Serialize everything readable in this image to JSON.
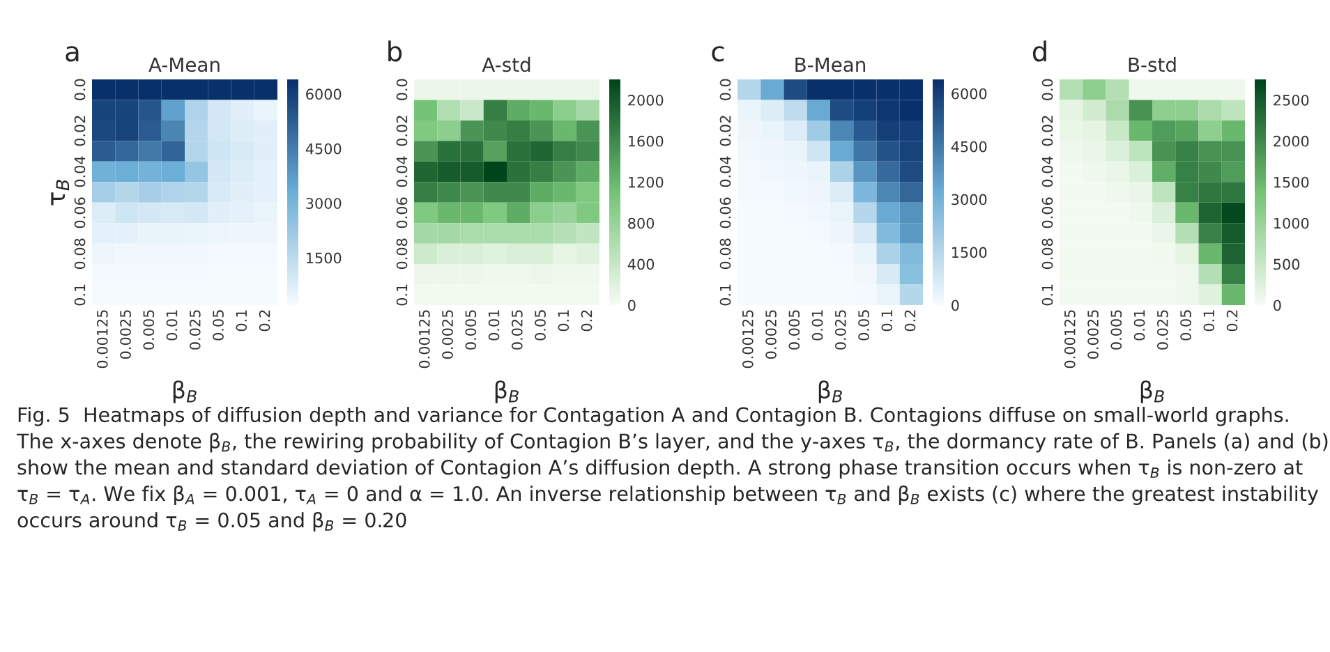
{
  "chart_data": [
    {
      "type": "heatmap",
      "title": "A-Mean",
      "xlabel": "β$_{B}$",
      "ylabel": "τ$_{B}$",
      "annotations": [
        "a"
      ],
      "categories": [
        "0.00125",
        "0.0025",
        "0.005",
        "0.01",
        "0.025",
        "0.05",
        "0.1",
        "0.2"
      ],
      "y_categories": [
        "0.0",
        null,
        "0.02",
        null,
        "0.04",
        null,
        "0.06",
        null,
        "0.08",
        null,
        "0.1"
      ],
      "colors": [
        "#f7fbff",
        "#6baed6",
        "#08306b"
      ],
      "clim": [
        200,
        6400
      ],
      "cticks": [
        1500,
        3000,
        4500,
        6000
      ],
      "cells": [
        [
          6400,
          6400,
          6400,
          6400,
          6400,
          6400,
          6400,
          6400
        ],
        [
          5900,
          5900,
          5500,
          3600,
          1800,
          1000,
          700,
          500
        ],
        [
          5800,
          5900,
          5300,
          4300,
          1700,
          1000,
          800,
          700
        ],
        [
          5300,
          5000,
          4600,
          5100,
          1700,
          1100,
          900,
          700
        ],
        [
          3200,
          3300,
          3100,
          3300,
          2400,
          1000,
          800,
          600
        ],
        [
          2000,
          1700,
          2000,
          1800,
          1700,
          900,
          700,
          600
        ],
        [
          800,
          1100,
          1000,
          900,
          1000,
          700,
          600,
          500
        ],
        [
          600,
          600,
          550,
          550,
          500,
          450,
          400,
          400
        ],
        [
          400,
          350,
          350,
          350,
          350,
          300,
          300,
          300
        ],
        [
          300,
          300,
          300,
          300,
          300,
          250,
          250,
          250
        ],
        [
          250,
          250,
          250,
          250,
          250,
          250,
          250,
          250
        ]
      ]
    },
    {
      "type": "heatmap",
      "title": "A-std",
      "xlabel": "β$_{B}$",
      "annotations": [
        "b"
      ],
      "categories": [
        "0.00125",
        "0.0025",
        "0.005",
        "0.01",
        "0.025",
        "0.05",
        "0.1",
        "0.2"
      ],
      "y_categories": [
        "0.0",
        null,
        "0.02",
        null,
        "0.04",
        null,
        "0.06",
        null,
        "0.08",
        null,
        "0.1"
      ],
      "colors": [
        "#f7fcf5",
        "#74c476",
        "#00441b"
      ],
      "clim": [
        0,
        2200
      ],
      "cticks": [
        0,
        400,
        800,
        1200,
        1600,
        2000
      ],
      "cells": [
        [
          100,
          100,
          100,
          100,
          100,
          100,
          100,
          100
        ],
        [
          1100,
          600,
          400,
          1700,
          1300,
          1200,
          900,
          700
        ],
        [
          1000,
          900,
          1500,
          1600,
          1700,
          1500,
          1200,
          1500
        ],
        [
          1500,
          1800,
          1800,
          1400,
          1800,
          1900,
          1700,
          1600
        ],
        [
          1900,
          2000,
          2000,
          2200,
          1800,
          1700,
          1500,
          1300
        ],
        [
          1700,
          1600,
          1500,
          1600,
          1600,
          1300,
          1200,
          1000
        ],
        [
          1000,
          1200,
          1200,
          1000,
          1300,
          900,
          800,
          1000
        ],
        [
          700,
          700,
          650,
          650,
          650,
          650,
          550,
          450
        ],
        [
          350,
          250,
          250,
          200,
          250,
          250,
          150,
          200
        ],
        [
          100,
          100,
          100,
          80,
          80,
          100,
          80,
          80
        ],
        [
          50,
          50,
          50,
          50,
          50,
          50,
          50,
          50
        ]
      ]
    },
    {
      "type": "heatmap",
      "title": "B-Mean",
      "xlabel": "β$_{B}$",
      "annotations": [
        "c"
      ],
      "categories": [
        "0.00125",
        "0.0025",
        "0.005",
        "0.01",
        "0.025",
        "0.05",
        "0.1",
        "0.2"
      ],
      "y_categories": [
        "0.0",
        null,
        "0.02",
        null,
        "0.04",
        null,
        "0.06",
        null,
        "0.08",
        null,
        "0.1"
      ],
      "colors": [
        "#f7fbff",
        "#6baed6",
        "#08306b"
      ],
      "clim": [
        0,
        6400
      ],
      "cticks": [
        0,
        1500,
        3000,
        4500,
        6000
      ],
      "cells": [
        [
          1500,
          3300,
          5700,
          6400,
          6400,
          6400,
          6400,
          6400
        ],
        [
          300,
          600,
          1300,
          3300,
          5700,
          6000,
          6200,
          6400
        ],
        [
          200,
          300,
          600,
          2000,
          4200,
          5300,
          6000,
          6000
        ],
        [
          150,
          200,
          300,
          900,
          3300,
          4600,
          5500,
          5900
        ],
        [
          100,
          150,
          200,
          300,
          1700,
          3800,
          4900,
          5700
        ],
        [
          100,
          100,
          150,
          200,
          600,
          2800,
          4200,
          5000
        ],
        [
          50,
          50,
          100,
          150,
          300,
          1500,
          3300,
          3900
        ],
        [
          50,
          50,
          50,
          100,
          200,
          700,
          2700,
          3700
        ],
        [
          50,
          50,
          50,
          50,
          100,
          300,
          1700,
          2700
        ],
        [
          50,
          50,
          50,
          50,
          50,
          150,
          700,
          2500
        ],
        [
          50,
          50,
          50,
          50,
          50,
          100,
          300,
          1500
        ]
      ]
    },
    {
      "type": "heatmap",
      "title": "B-std",
      "xlabel": "β$_{B}$",
      "annotations": [
        "d",
        "Fig. 5  Heatmaps of diffusion depth and variance for Contagation A and Contagion B. Contagions diffuse on small-world graphs. The x-axes denote β$_{B}$, the rewiring probability of Contagion B’s layer, and the y-axes τ$_{B}$, the dormancy rate of B. Panels (a) and (b) show the mean and standard deviation of Contagion A’s diffusion depth. A strong phase transition occurs when τ$_{B}$ is non-zero at τ$_{B}$ = τ$_{A}$. We fix β$_{A}$ = 0.001, τ$_{A}$ = 0 and α = 1.0. An inverse relationship between τ$_{B}$ and β$_{B}$ exists (c) where the greatest instability occurs around τ$_{B}$ = 0.05 and β$_{B}$ = 0.20"
      ],
      "categories": [
        "0.00125",
        "0.0025",
        "0.005",
        "0.01",
        "0.025",
        "0.05",
        "0.1",
        "0.2"
      ],
      "y_categories": [
        "0.0",
        null,
        "0.02",
        null,
        "0.04",
        null,
        "0.06",
        null,
        "0.08",
        null,
        "0.1"
      ],
      "colors": [
        "#f7fcf5",
        "#74c476",
        "#00441b"
      ],
      "clim": [
        0,
        2750
      ],
      "cticks": [
        0,
        500,
        1000,
        1500,
        2000,
        2500
      ],
      "cells": [
        [
          700,
          1100,
          700,
          100,
          100,
          100,
          100,
          100
        ],
        [
          200,
          400,
          800,
          1900,
          1100,
          1100,
          800,
          600
        ],
        [
          150,
          200,
          500,
          1500,
          1800,
          1700,
          1100,
          1500
        ],
        [
          100,
          150,
          300,
          600,
          1900,
          2100,
          1900,
          1900
        ],
        [
          50,
          100,
          150,
          300,
          1600,
          2100,
          2000,
          1800
        ],
        [
          50,
          50,
          100,
          150,
          600,
          2100,
          2200,
          2200
        ],
        [
          50,
          50,
          50,
          100,
          300,
          1500,
          2400,
          2700
        ],
        [
          50,
          50,
          50,
          50,
          150,
          700,
          2100,
          2500
        ],
        [
          50,
          50,
          50,
          50,
          80,
          200,
          1500,
          2400
        ],
        [
          50,
          50,
          50,
          50,
          50,
          100,
          700,
          2100
        ],
        [
          50,
          50,
          50,
          50,
          50,
          100,
          250,
          1500
        ]
      ]
    }
  ]
}
